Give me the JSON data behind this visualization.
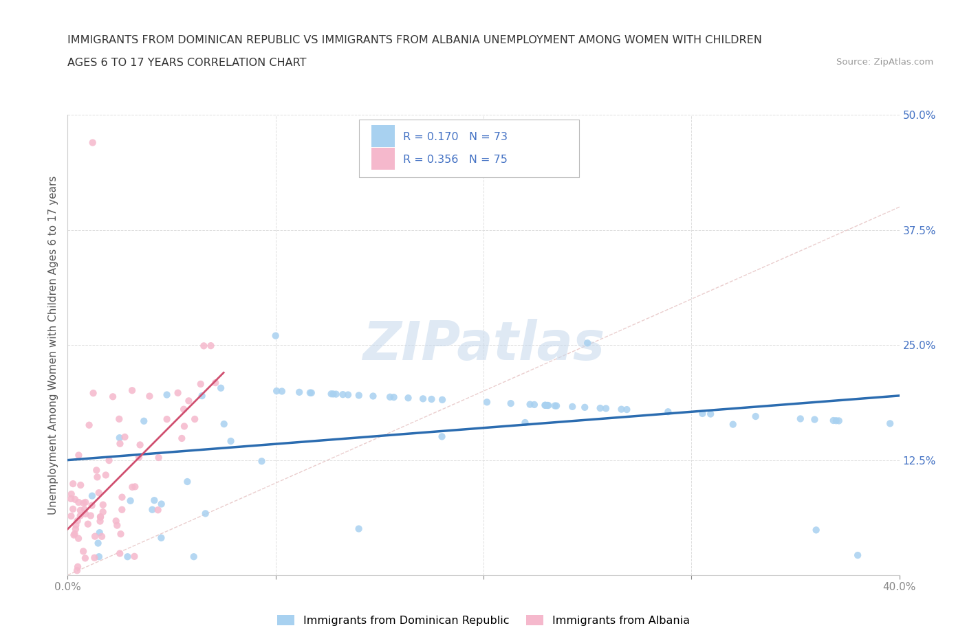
{
  "title_line1": "IMMIGRANTS FROM DOMINICAN REPUBLIC VS IMMIGRANTS FROM ALBANIA UNEMPLOYMENT AMONG WOMEN WITH CHILDREN",
  "title_line2": "AGES 6 TO 17 YEARS CORRELATION CHART",
  "source": "Source: ZipAtlas.com",
  "ylabel": "Unemployment Among Women with Children Ages 6 to 17 years",
  "xlim": [
    0.0,
    0.4
  ],
  "ylim": [
    0.0,
    0.5
  ],
  "xtick_positions": [
    0.0,
    0.1,
    0.2,
    0.3,
    0.4
  ],
  "xticklabels": [
    "0.0%",
    "",
    "",
    "",
    "40.0%"
  ],
  "ytick_positions": [
    0.0,
    0.125,
    0.25,
    0.375,
    0.5
  ],
  "yticklabels": [
    "",
    "12.5%",
    "25.0%",
    "37.5%",
    "50.0%"
  ],
  "R_dr": 0.17,
  "N_dr": 73,
  "R_alb": 0.356,
  "N_alb": 75,
  "legend_label_dr": "Immigrants from Dominican Republic",
  "legend_label_alb": "Immigrants from Albania",
  "color_dr": "#A8D1F0",
  "color_alb": "#F5B8CC",
  "trendline_color_dr": "#2B6CB0",
  "trendline_color_alb": "#D05070",
  "diagonal_color": "#E8C8C8",
  "background_color": "#FFFFFF",
  "watermark": "ZIPatlas",
  "watermark_color_zip": "#B0C8E0",
  "watermark_color_atlas": "#C0D0C0",
  "grid_color": "#DDDDDD",
  "tick_color": "#888888",
  "label_color": "#555555",
  "right_tick_color": "#4472C4",
  "title_color": "#333333",
  "source_color": "#999999"
}
